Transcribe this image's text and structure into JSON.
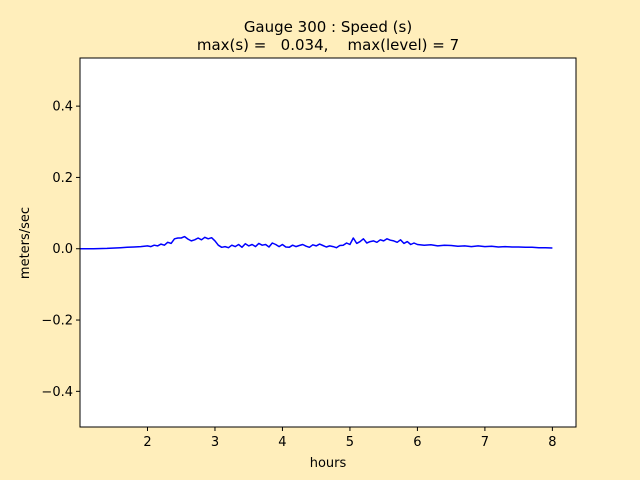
{
  "chart_data": {
    "type": "line",
    "title_line1": "Gauge 300 : Speed (s)",
    "title_line2": "max(s) =   0.034,    max(level) = 7",
    "xlabel": "hours",
    "ylabel": "meters/sec",
    "xlim": [
      1.0,
      8.35
    ],
    "ylim": [
      -0.5,
      0.535
    ],
    "x_ticks": [
      2,
      3,
      4,
      5,
      6,
      7,
      8
    ],
    "x_tick_labels": [
      "2",
      "3",
      "4",
      "5",
      "6",
      "7",
      "8"
    ],
    "y_ticks": [
      0.4,
      0.2,
      0.0,
      -0.2,
      -0.4
    ],
    "y_tick_labels": [
      "0.4",
      "0.2",
      "0.0",
      "−0.2",
      "−0.4"
    ],
    "grid": false,
    "line_color": "#0000ff",
    "plot_background": "#ffffff",
    "figure_background": "#ffeebb",
    "series": [
      {
        "x": [
          1.0,
          1.2,
          1.4,
          1.6,
          1.7,
          1.8,
          1.9,
          2.0,
          2.05,
          2.1,
          2.15,
          2.2,
          2.25,
          2.3,
          2.35,
          2.4,
          2.45,
          2.5,
          2.55,
          2.6,
          2.65,
          2.7,
          2.75,
          2.8,
          2.85,
          2.9,
          2.95,
          3.0,
          3.05,
          3.1,
          3.15,
          3.2,
          3.25,
          3.3,
          3.35,
          3.4,
          3.45,
          3.5,
          3.55,
          3.6,
          3.65,
          3.7,
          3.75,
          3.8,
          3.85,
          3.9,
          3.95,
          4.0,
          4.05,
          4.1,
          4.15,
          4.2,
          4.25,
          4.3,
          4.35,
          4.4,
          4.45,
          4.5,
          4.55,
          4.6,
          4.65,
          4.7,
          4.75,
          4.8,
          4.85,
          4.9,
          4.95,
          5.0,
          5.05,
          5.1,
          5.15,
          5.2,
          5.25,
          5.3,
          5.35,
          5.4,
          5.45,
          5.5,
          5.55,
          5.6,
          5.65,
          5.7,
          5.75,
          5.8,
          5.85,
          5.9,
          5.95,
          6.0,
          6.1,
          6.2,
          6.3,
          6.4,
          6.5,
          6.6,
          6.7,
          6.8,
          6.9,
          7.0,
          7.1,
          7.2,
          7.3,
          7.4,
          7.5,
          7.6,
          7.7,
          7.8,
          7.9,
          8.0
        ],
        "y": [
          0.0,
          0.0,
          0.001,
          0.003,
          0.004,
          0.005,
          0.006,
          0.008,
          0.006,
          0.01,
          0.008,
          0.013,
          0.01,
          0.018,
          0.015,
          0.028,
          0.03,
          0.03,
          0.034,
          0.027,
          0.022,
          0.025,
          0.03,
          0.025,
          0.032,
          0.028,
          0.031,
          0.022,
          0.01,
          0.004,
          0.006,
          0.003,
          0.01,
          0.006,
          0.012,
          0.004,
          0.014,
          0.008,
          0.012,
          0.006,
          0.015,
          0.01,
          0.012,
          0.005,
          0.016,
          0.012,
          0.006,
          0.012,
          0.005,
          0.004,
          0.01,
          0.006,
          0.009,
          0.012,
          0.007,
          0.004,
          0.011,
          0.008,
          0.013,
          0.009,
          0.005,
          0.008,
          0.006,
          0.003,
          0.009,
          0.01,
          0.016,
          0.012,
          0.03,
          0.015,
          0.02,
          0.028,
          0.016,
          0.02,
          0.022,
          0.018,
          0.025,
          0.022,
          0.028,
          0.024,
          0.022,
          0.018,
          0.025,
          0.015,
          0.02,
          0.012,
          0.016,
          0.012,
          0.01,
          0.011,
          0.008,
          0.01,
          0.009,
          0.007,
          0.008,
          0.006,
          0.008,
          0.006,
          0.007,
          0.005,
          0.006,
          0.005,
          0.005,
          0.004,
          0.004,
          0.003,
          0.003,
          0.002
        ]
      }
    ]
  }
}
